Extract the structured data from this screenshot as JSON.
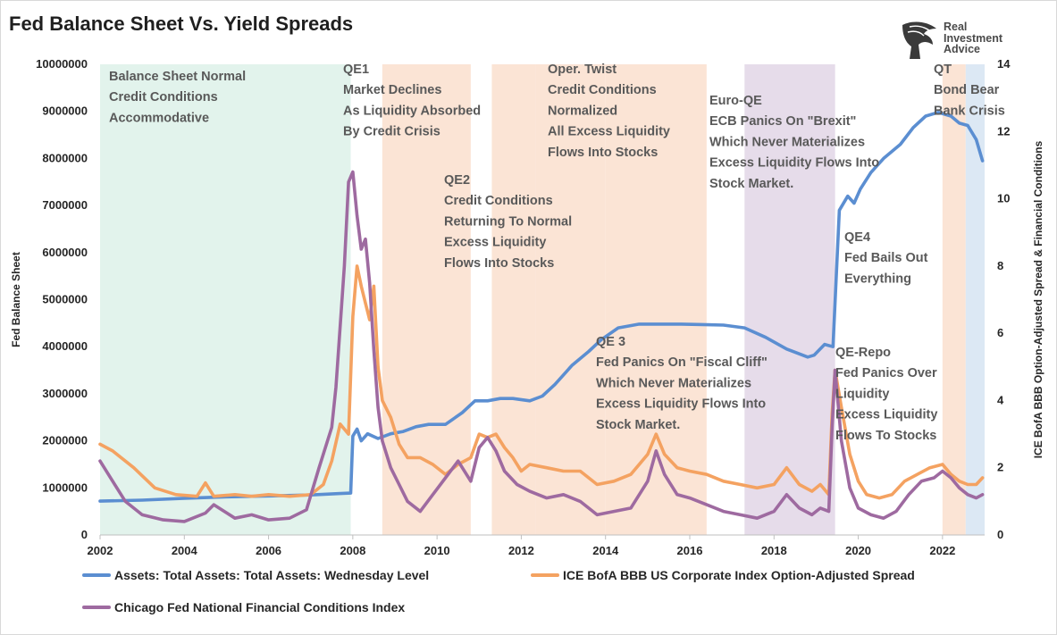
{
  "chart_data": {
    "type": "line",
    "title": "Fed Balance Sheet Vs. Yield Spreads",
    "ylabel_left": "Fed Balance Sheet",
    "ylabel_right": "ICE BofA BBB Option-Adjusted Spread & Financial Conditions",
    "xlim": [
      2002.0,
      2023.0
    ],
    "ylim_left": [
      0,
      10000000
    ],
    "ylim_right": [
      0,
      14
    ],
    "x_ticks": [
      "2002",
      "2004",
      "2006",
      "2008",
      "2010",
      "2012",
      "2014",
      "2016",
      "2018",
      "2020",
      "2022"
    ],
    "y_left_ticks": [
      "0",
      "1000000",
      "2000000",
      "3000000",
      "4000000",
      "5000000",
      "6000000",
      "7000000",
      "8000000",
      "9000000",
      "10000000"
    ],
    "y_right_ticks": [
      "0",
      "2",
      "4",
      "6",
      "8",
      "10",
      "12",
      "14"
    ],
    "grid": false,
    "legend_position": "bottom",
    "regions": [
      {
        "start": 2002.0,
        "end": 2007.95,
        "color": "#e2f3ec",
        "lines": [
          "Balance Sheet Normal",
          "Credit Conditions",
          "Accommodative"
        ]
      },
      {
        "start": 2008.7,
        "end": 2010.8,
        "color": "#fbe4d5",
        "lines": [
          "QE1",
          "Market Declines",
          "As Liquidity Absorbed",
          "By Credit Crisis"
        ]
      },
      {
        "start": 2011.3,
        "end": 2012.35,
        "color": "#fbe4d5",
        "lines": [
          "Oper. Twist",
          "Credit Conditions",
          "Normalized",
          "All Excess Liquidity",
          "Flows Into Stocks"
        ]
      },
      {
        "start": 2012.35,
        "end": 2014.0,
        "color": "#fbe4d5",
        "lines": [
          "QE2",
          "Credit Conditions",
          "Returning To Normal",
          "Excess Liquidity",
          "Flows Into Stocks"
        ]
      },
      {
        "start": 2014.0,
        "end": 2016.4,
        "color": "#fbe4d5",
        "lines": [
          "QE 3",
          "Fed Panics On \"Fiscal Cliff\"",
          "Which Never Materializes",
          "Excess Liquidity Flows Into",
          "Stock Market."
        ]
      },
      {
        "start": 2017.3,
        "end": 2019.45,
        "color": "#e6dcea",
        "lines": [
          "Euro-QE",
          "ECB Panics On \"Brexit\"",
          "Which Never Materializes",
          "Excess Liquidity Flows Into",
          "Stock Market."
        ]
      },
      {
        "start": 2019.45,
        "end": 2019.45,
        "color": "#ffffff",
        "lines": [
          "QE4",
          "Fed Bails Out",
          "Everything"
        ]
      },
      {
        "start": 2019.45,
        "end": 2019.45,
        "color": "#ffffff",
        "lines": [
          "QE-Repo",
          "Fed Panics Over",
          "Liquidity",
          "Excess Liquidity",
          "Flows To Stocks"
        ]
      },
      {
        "start": 2022.0,
        "end": 2022.55,
        "color": "#fbe4d5",
        "lines": [
          "QT",
          "Bond Bear",
          "Bank Crisis"
        ]
      },
      {
        "start": 2022.55,
        "end": 2023.0,
        "color": "#dce8f4",
        "lines": []
      }
    ],
    "series": [
      {
        "name": "Assets: Total Assets: Total Assets: Wednesday Level",
        "axis": "left",
        "color": "#5b8ed1",
        "x": [
          2002.0,
          2003.0,
          2004.0,
          2005.0,
          2006.0,
          2007.0,
          2007.7,
          2007.95,
          2008.0,
          2008.1,
          2008.2,
          2008.35,
          2008.6,
          2008.9,
          2009.2,
          2009.5,
          2009.8,
          2010.2,
          2010.6,
          2010.9,
          2011.2,
          2011.5,
          2011.8,
          2012.2,
          2012.5,
          2012.8,
          2013.2,
          2013.6,
          2013.9,
          2014.3,
          2014.8,
          2015.3,
          2015.8,
          2016.3,
          2016.8,
          2017.3,
          2017.8,
          2018.3,
          2018.8,
          2018.95,
          2019.2,
          2019.4,
          2019.55,
          2019.75,
          2019.9,
          2020.05,
          2020.3,
          2020.6,
          2021.0,
          2021.3,
          2021.6,
          2021.9,
          2022.2,
          2022.4,
          2022.6,
          2022.8,
          2022.95
        ],
        "values": [
          720000,
          740000,
          780000,
          810000,
          830000,
          850000,
          880000,
          890000,
          2100000,
          2250000,
          2000000,
          2150000,
          2050000,
          2150000,
          2200000,
          2300000,
          2350000,
          2350000,
          2600000,
          2850000,
          2850000,
          2900000,
          2900000,
          2850000,
          2950000,
          3200000,
          3600000,
          3900000,
          4150000,
          4400000,
          4480000,
          4480000,
          4480000,
          4470000,
          4460000,
          4400000,
          4200000,
          3950000,
          3780000,
          3820000,
          4050000,
          4000000,
          6900000,
          7200000,
          7050000,
          7350000,
          7700000,
          8000000,
          8300000,
          8650000,
          8900000,
          8980000,
          8900000,
          8750000,
          8700000,
          8400000,
          7950000
        ]
      },
      {
        "name": "ICE BofA BBB US Corporate Index Option-Adjusted Spread",
        "axis": "right",
        "color": "#f4a261",
        "x": [
          2002.0,
          2002.3,
          2002.8,
          2003.3,
          2003.8,
          2004.3,
          2004.5,
          2004.7,
          2005.2,
          2005.6,
          2006.0,
          2006.5,
          2007.0,
          2007.3,
          2007.5,
          2007.7,
          2007.9,
          2008.0,
          2008.1,
          2008.2,
          2008.3,
          2008.4,
          2008.5,
          2008.6,
          2008.7,
          2008.9,
          2009.1,
          2009.3,
          2009.6,
          2009.9,
          2010.2,
          2010.5,
          2010.8,
          2011.0,
          2011.2,
          2011.4,
          2011.6,
          2011.8,
          2012.0,
          2012.2,
          2012.6,
          2013.0,
          2013.4,
          2013.8,
          2014.2,
          2014.6,
          2015.0,
          2015.2,
          2015.4,
          2015.7,
          2016.0,
          2016.4,
          2016.8,
          2017.2,
          2017.6,
          2018.0,
          2018.3,
          2018.6,
          2018.9,
          2019.1,
          2019.3,
          2019.38,
          2019.45,
          2019.6,
          2019.8,
          2020.0,
          2020.2,
          2020.5,
          2020.8,
          2021.1,
          2021.4,
          2021.7,
          2022.0,
          2022.2,
          2022.4,
          2022.6,
          2022.8,
          2022.95
        ],
        "values": [
          2.7,
          2.5,
          2.0,
          1.4,
          1.2,
          1.15,
          1.55,
          1.15,
          1.2,
          1.15,
          1.2,
          1.15,
          1.2,
          1.5,
          2.2,
          3.3,
          3.0,
          6.5,
          8.0,
          7.4,
          6.9,
          6.4,
          7.4,
          5.0,
          4.0,
          3.5,
          2.7,
          2.3,
          2.3,
          2.1,
          1.8,
          2.1,
          2.3,
          3.0,
          2.9,
          3.0,
          2.6,
          2.3,
          1.9,
          2.1,
          2.0,
          1.9,
          1.9,
          1.5,
          1.6,
          1.8,
          2.4,
          3.0,
          2.4,
          2.0,
          1.9,
          1.8,
          1.6,
          1.5,
          1.4,
          1.5,
          2.0,
          1.5,
          1.3,
          1.5,
          1.2,
          3.6,
          4.9,
          3.8,
          2.4,
          1.6,
          1.2,
          1.1,
          1.2,
          1.6,
          1.8,
          2.0,
          2.1,
          1.8,
          1.6,
          1.5,
          1.5,
          1.7
        ]
      },
      {
        "name": "Chicago Fed National Financial Conditions Index",
        "axis": "right",
        "color": "#9e6aa0",
        "x": [
          2002.0,
          2002.3,
          2002.6,
          2003.0,
          2003.5,
          2004.0,
          2004.5,
          2004.7,
          2005.2,
          2005.6,
          2006.0,
          2006.5,
          2006.9,
          2007.2,
          2007.5,
          2007.6,
          2007.8,
          2007.9,
          2008.0,
          2008.1,
          2008.2,
          2008.3,
          2008.4,
          2008.5,
          2008.6,
          2008.7,
          2008.9,
          2009.1,
          2009.3,
          2009.6,
          2009.9,
          2010.2,
          2010.5,
          2010.8,
          2011.0,
          2011.2,
          2011.4,
          2011.6,
          2011.9,
          2012.2,
          2012.6,
          2013.0,
          2013.4,
          2013.8,
          2014.2,
          2014.6,
          2015.0,
          2015.2,
          2015.4,
          2015.7,
          2016.0,
          2016.4,
          2016.8,
          2017.2,
          2017.6,
          2018.0,
          2018.3,
          2018.6,
          2018.9,
          2019.1,
          2019.3,
          2019.38,
          2019.45,
          2019.6,
          2019.8,
          2020.0,
          2020.3,
          2020.6,
          2020.9,
          2021.2,
          2021.5,
          2021.8,
          2022.0,
          2022.2,
          2022.4,
          2022.6,
          2022.8,
          2022.95
        ],
        "values": [
          2.2,
          1.6,
          1.0,
          0.6,
          0.45,
          0.4,
          0.65,
          0.9,
          0.5,
          0.6,
          0.45,
          0.5,
          0.75,
          2.0,
          3.2,
          4.4,
          8.0,
          10.5,
          10.8,
          9.5,
          8.5,
          8.8,
          7.5,
          5.5,
          3.8,
          2.8,
          2.0,
          1.5,
          1.0,
          0.7,
          1.2,
          1.7,
          2.2,
          1.6,
          2.6,
          2.9,
          2.5,
          1.9,
          1.5,
          1.3,
          1.1,
          1.2,
          1.0,
          0.6,
          0.7,
          0.8,
          1.6,
          2.5,
          1.8,
          1.2,
          1.1,
          0.9,
          0.7,
          0.6,
          0.5,
          0.7,
          1.2,
          0.8,
          0.6,
          0.8,
          0.7,
          3.2,
          4.9,
          2.8,
          1.4,
          0.8,
          0.6,
          0.5,
          0.7,
          1.2,
          1.6,
          1.7,
          1.9,
          1.7,
          1.4,
          1.2,
          1.1,
          1.2
        ]
      }
    ]
  },
  "logo": {
    "lines": [
      "Real",
      "Investment",
      "Advice"
    ]
  }
}
